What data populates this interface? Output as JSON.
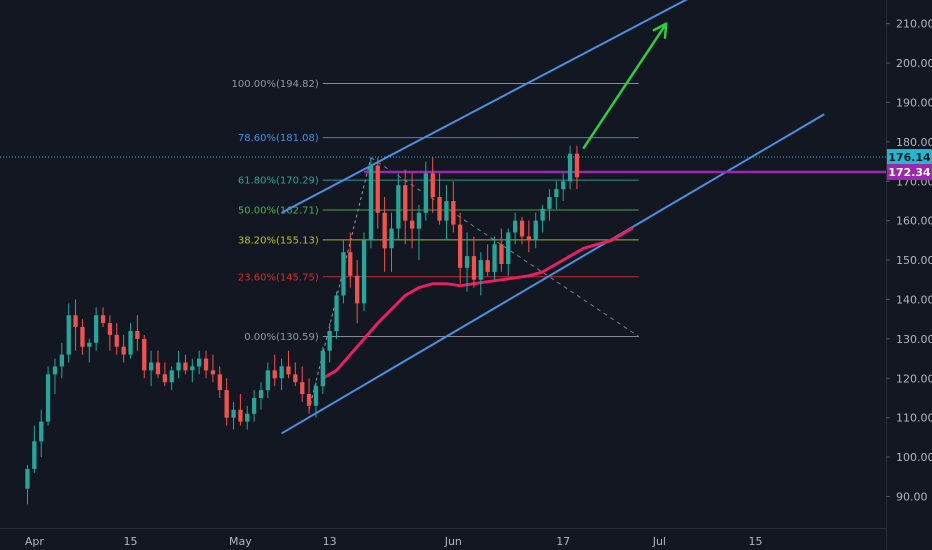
{
  "chart_data": {
    "type": "candlestick",
    "y_axis": {
      "ticks": [
        90,
        100,
        110,
        120,
        130,
        140,
        150,
        160,
        170,
        180,
        190,
        200,
        210
      ],
      "tick_labels": [
        "90.00",
        "100.00",
        "110.00",
        "120.00",
        "130.00",
        "140.00",
        "150.00",
        "160.00",
        "170.00",
        "180.00",
        "190.00",
        "200.00",
        "210.00"
      ],
      "ylim": [
        82,
        216
      ]
    },
    "x_axis": {
      "labels": [
        {
          "text": "Apr",
          "day": 0
        },
        {
          "text": "15",
          "day": 14
        },
        {
          "text": "May",
          "day": 30
        },
        {
          "text": "13",
          "day": 43
        },
        {
          "text": "Jun",
          "day": 61
        },
        {
          "text": "17",
          "day": 77
        },
        {
          "text": "Jul",
          "day": 91
        },
        {
          "text": "15",
          "day": 105
        }
      ],
      "xlim": [
        -5,
        124
      ]
    },
    "candles": [
      [
        -1,
        92,
        98,
        88,
        97
      ],
      [
        0,
        97,
        108,
        96,
        104
      ],
      [
        1,
        104,
        112,
        100,
        109
      ],
      [
        2,
        109,
        123,
        108,
        121
      ],
      [
        3,
        121,
        125,
        116,
        123
      ],
      [
        4,
        123,
        129,
        120,
        126
      ],
      [
        5,
        126,
        139,
        124,
        136
      ],
      [
        6,
        136,
        140,
        127,
        133
      ],
      [
        7,
        133,
        135,
        126,
        128
      ],
      [
        8,
        128,
        130,
        124,
        129
      ],
      [
        9,
        129,
        138,
        127,
        136
      ],
      [
        10,
        136,
        138,
        133,
        134
      ],
      [
        11,
        134,
        136,
        127,
        131
      ],
      [
        12,
        131,
        134,
        126,
        128
      ],
      [
        13,
        128,
        131,
        124,
        126
      ],
      [
        14,
        126,
        134,
        125,
        132
      ],
      [
        15,
        132,
        136,
        127,
        130
      ],
      [
        16,
        130,
        131,
        120,
        122
      ],
      [
        17,
        122,
        127,
        118,
        124
      ],
      [
        18,
        124,
        127,
        120,
        121
      ],
      [
        19,
        121,
        124,
        118,
        119
      ],
      [
        20,
        119,
        123,
        117,
        122
      ],
      [
        21,
        122,
        127,
        120,
        124
      ],
      [
        22,
        124,
        126,
        121,
        122
      ],
      [
        23,
        122,
        125,
        119,
        123
      ],
      [
        24,
        123,
        127,
        121,
        125
      ],
      [
        25,
        125,
        127,
        120,
        122
      ],
      [
        26,
        122,
        126,
        119,
        121
      ],
      [
        27,
        121,
        123,
        115,
        117
      ],
      [
        28,
        117,
        120,
        108,
        110
      ],
      [
        29,
        110,
        114,
        107,
        112
      ],
      [
        30,
        112,
        116,
        108,
        109
      ],
      [
        31,
        109,
        113,
        107,
        111
      ],
      [
        32,
        111,
        117,
        109,
        115
      ],
      [
        33,
        115,
        119,
        112,
        117
      ],
      [
        34,
        117,
        124,
        115,
        122
      ],
      [
        35,
        122,
        126,
        118,
        120
      ],
      [
        36,
        120,
        125,
        117,
        123
      ],
      [
        37,
        123,
        127,
        120,
        121
      ],
      [
        38,
        121,
        124,
        118,
        119
      ],
      [
        39,
        119,
        123,
        114,
        116
      ],
      [
        40,
        116,
        120,
        111,
        113
      ],
      [
        41,
        113,
        119,
        110,
        118
      ],
      [
        42,
        118,
        128,
        116,
        127
      ],
      [
        43,
        127,
        134,
        124,
        132
      ],
      [
        44,
        132,
        142,
        130,
        141
      ],
      [
        45,
        141,
        155,
        139,
        152
      ],
      [
        46,
        152,
        157,
        143,
        146
      ],
      [
        47,
        146,
        150,
        134,
        139
      ],
      [
        48,
        139,
        157,
        137,
        155
      ],
      [
        49,
        155,
        176,
        153,
        174
      ],
      [
        50,
        174,
        176,
        158,
        162
      ],
      [
        51,
        162,
        166,
        147,
        153
      ],
      [
        52,
        153,
        162,
        147,
        158
      ],
      [
        53,
        158,
        172,
        155,
        169
      ],
      [
        54,
        169,
        173,
        154,
        160
      ],
      [
        55,
        160,
        172,
        153,
        158
      ],
      [
        56,
        158,
        164,
        150,
        162
      ],
      [
        57,
        162,
        175,
        160,
        172
      ],
      [
        58,
        172,
        176,
        162,
        166
      ],
      [
        59,
        166,
        172,
        159,
        160
      ],
      [
        60,
        160,
        169,
        155,
        165
      ],
      [
        61,
        165,
        170,
        157,
        159
      ],
      [
        62,
        159,
        162,
        144,
        148
      ],
      [
        63,
        148,
        157,
        142,
        151
      ],
      [
        64,
        151,
        156,
        143,
        145
      ],
      [
        65,
        145,
        152,
        141,
        150
      ],
      [
        66,
        150,
        154,
        146,
        147
      ],
      [
        67,
        147,
        156,
        145,
        154
      ],
      [
        68,
        154,
        158,
        147,
        149
      ],
      [
        69,
        149,
        158,
        146,
        157
      ],
      [
        70,
        157,
        162,
        154,
        160
      ],
      [
        71,
        160,
        161,
        154,
        156
      ],
      [
        72,
        156,
        160,
        152,
        155
      ],
      [
        73,
        155,
        162,
        153,
        160
      ],
      [
        74,
        160,
        164,
        157,
        163
      ],
      [
        75,
        163,
        168,
        160,
        166
      ],
      [
        76,
        166,
        170,
        163,
        168
      ],
      [
        77,
        168,
        172,
        165,
        170
      ],
      [
        78,
        170,
        179,
        168,
        177
      ],
      [
        79,
        177,
        179,
        168,
        171
      ]
    ],
    "fib_levels": [
      {
        "label": "100.00%(194.82)",
        "value": 194.82,
        "color": "#9598a1"
      },
      {
        "label": "78.60%(181.08)",
        "value": 181.08,
        "color": "#4a90d9"
      },
      {
        "label": "61.80%(170.29)",
        "value": 170.29,
        "color": "#26a69a"
      },
      {
        "label": "50.00%(162.71)",
        "value": 162.71,
        "color": "#4caf50"
      },
      {
        "label": "38.20%(155.13)",
        "value": 155.13,
        "color": "#b5c42c"
      },
      {
        "label": "23.60%(145.75)",
        "value": 145.75,
        "color": "#d32f2f"
      },
      {
        "label": "0.00%(130.59)",
        "value": 130.59,
        "color": "#9598a1"
      }
    ],
    "moving_average": {
      "color": "#e91e63",
      "points": [
        [
          42,
          120
        ],
        [
          44,
          122
        ],
        [
          46,
          126
        ],
        [
          48,
          130
        ],
        [
          50,
          134
        ],
        [
          52,
          137.5
        ],
        [
          54,
          141
        ],
        [
          56,
          143
        ],
        [
          58,
          144
        ],
        [
          60,
          144
        ],
        [
          62,
          143.5
        ],
        [
          64,
          144
        ],
        [
          66,
          144.5
        ],
        [
          68,
          145
        ],
        [
          70,
          145.5
        ],
        [
          72,
          146
        ],
        [
          74,
          147
        ],
        [
          76,
          149
        ],
        [
          78,
          151
        ],
        [
          80,
          153
        ],
        [
          82,
          154
        ],
        [
          84,
          155
        ],
        [
          86,
          157
        ],
        [
          87,
          158
        ]
      ]
    },
    "price_tags": [
      {
        "text": "176.14",
        "value": 176.14,
        "color": "#22b8cf",
        "text_color": "#131722"
      },
      {
        "text": "172.34",
        "value": 172.34,
        "color": "#9c27b0",
        "text_color": "#ffffff"
      }
    ],
    "colors": {
      "background": "#131722",
      "up": "#26a69a",
      "down": "#ef5350",
      "channel": "#4a90e2",
      "arrow": "#2ecc40",
      "horizontal_purple": "#9c27b0",
      "dotted_cyan": "#22b8cf",
      "axis_text": "#b2b5be"
    }
  }
}
